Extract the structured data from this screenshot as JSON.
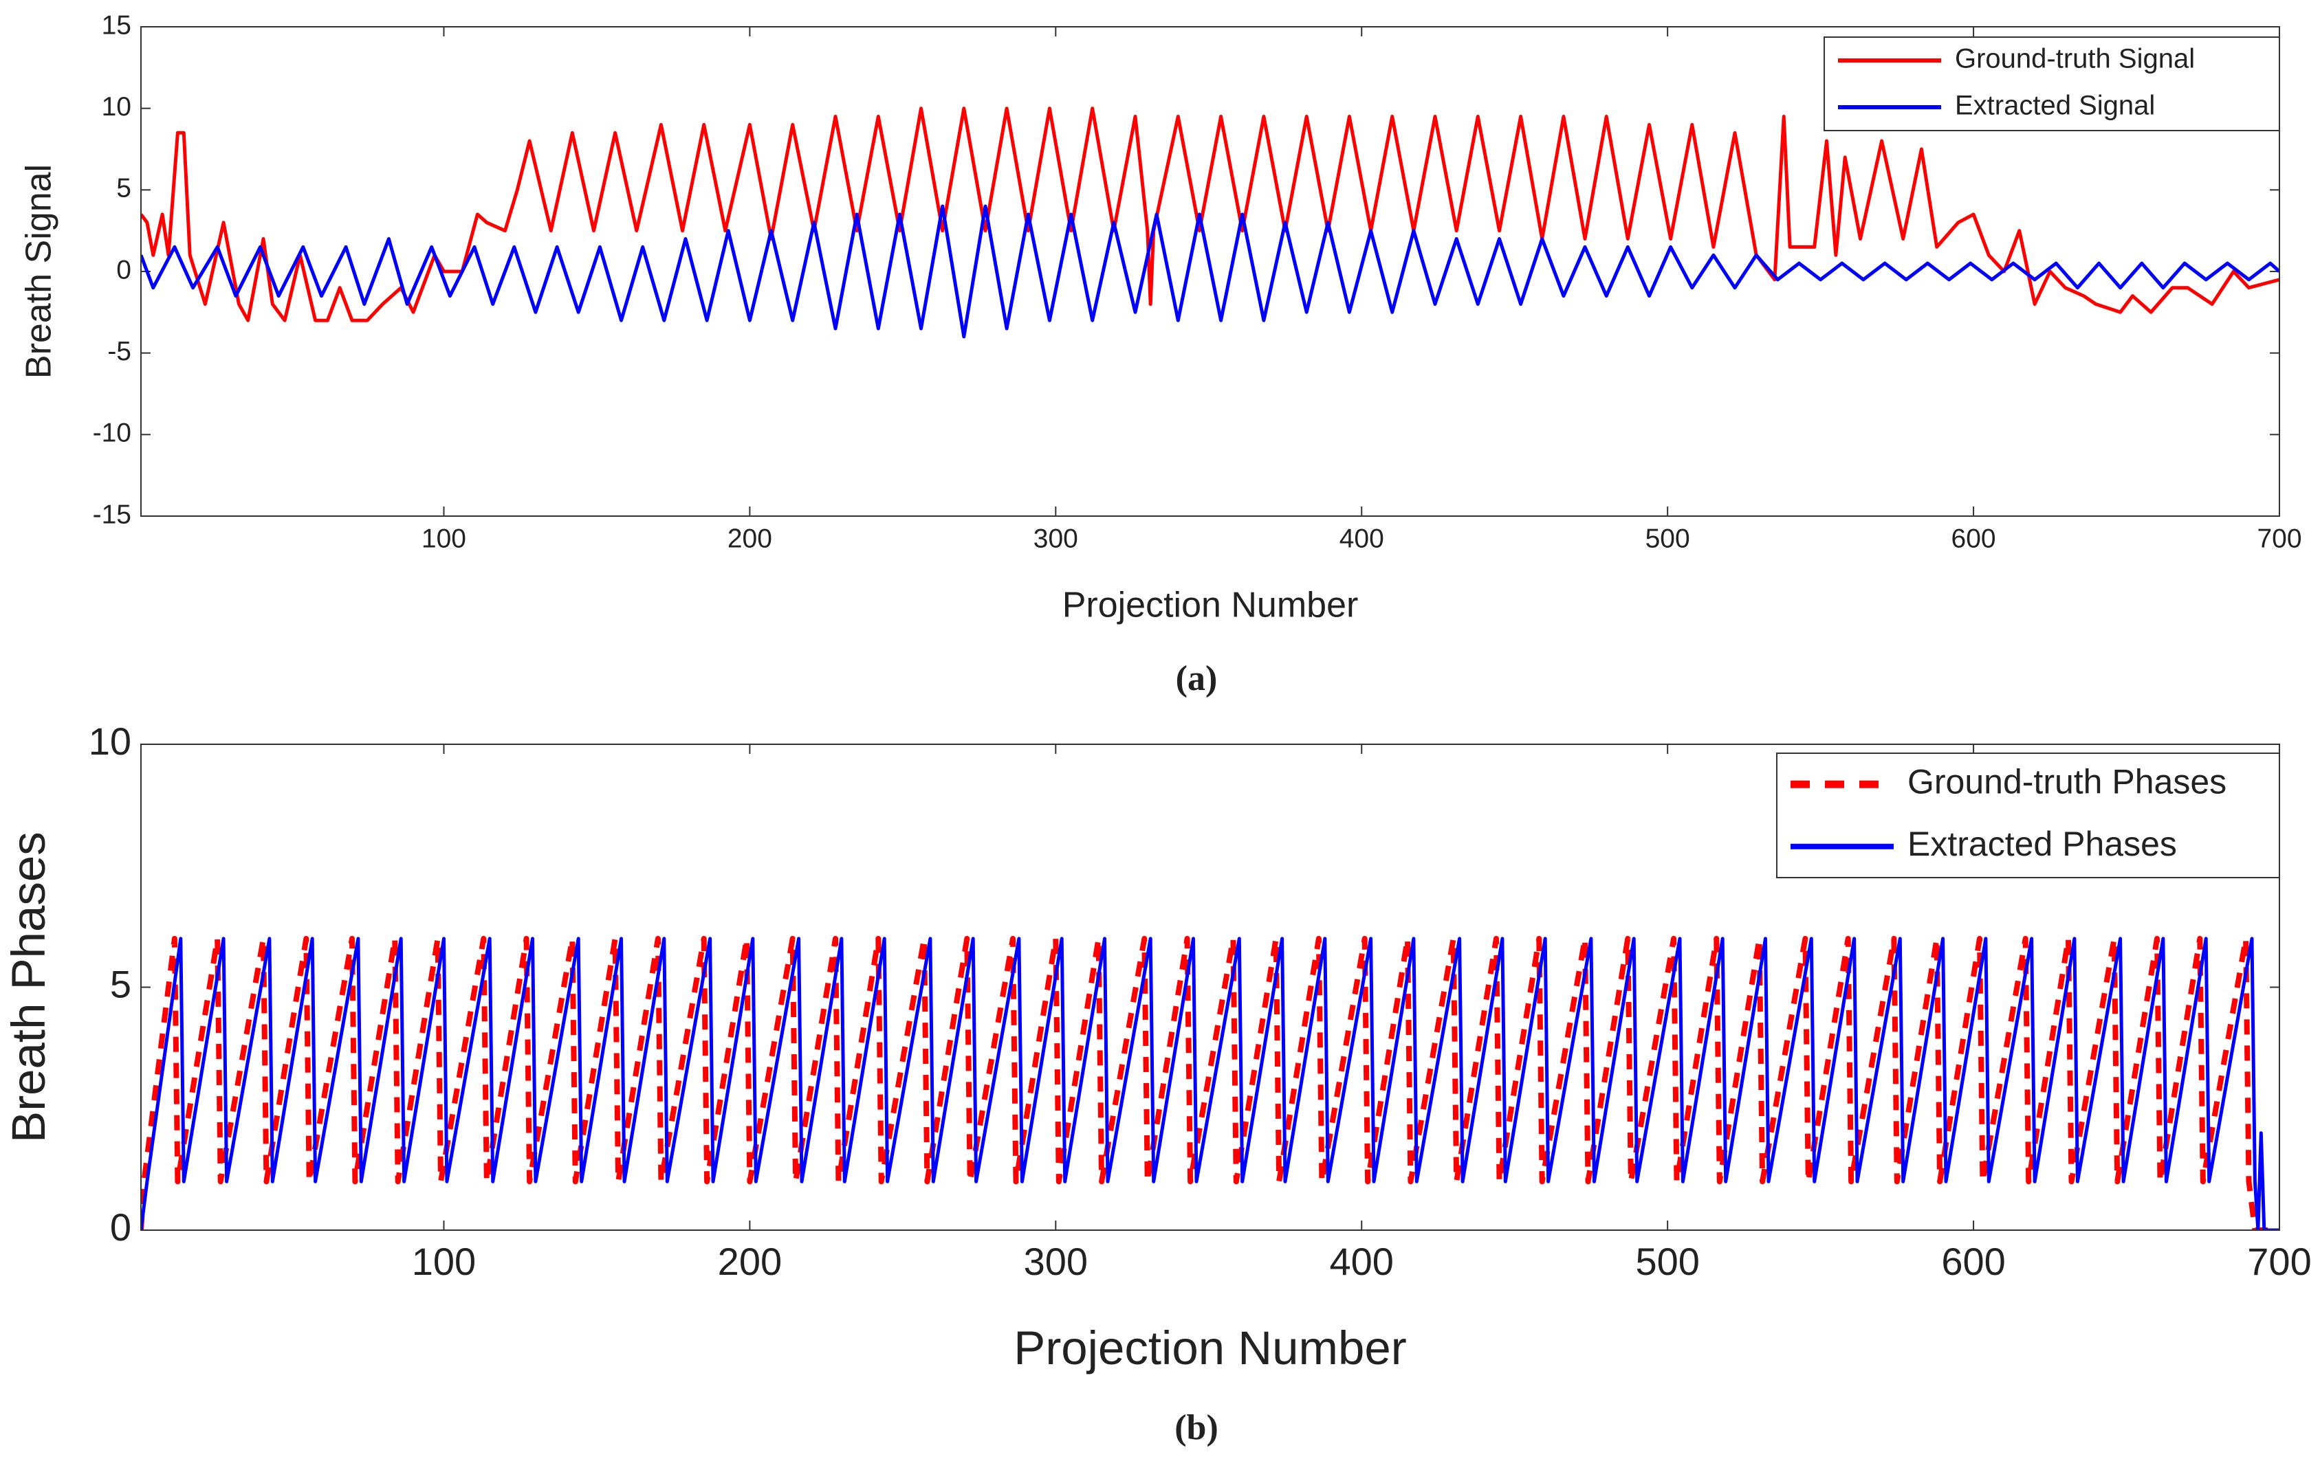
{
  "chart_data": [
    {
      "type": "line",
      "xlabel": "Projection Number",
      "ylabel": "Breath Signal",
      "caption": "(a)",
      "xlim": [
        1,
        700
      ],
      "ylim": [
        -15,
        15
      ],
      "xticks": [
        100,
        200,
        300,
        400,
        500,
        600,
        700
      ],
      "yticks": [
        -15,
        -10,
        -5,
        0,
        5,
        10,
        15
      ],
      "legend": "upper right",
      "series": [
        {
          "name": "Ground-truth Signal",
          "color": "#ff0000",
          "dash": false,
          "x": [
            1,
            3,
            5,
            8,
            10,
            13,
            15,
            17,
            22,
            28,
            33,
            36,
            41,
            44,
            48,
            53,
            58,
            62,
            66,
            70,
            75,
            80,
            86,
            90,
            97,
            100,
            106,
            111,
            114,
            120,
            124,
            128,
            135,
            142,
            149,
            156,
            163,
            171,
            178,
            185,
            192,
            200,
            207,
            214,
            221,
            228,
            235,
            242,
            249,
            256,
            263,
            270,
            277,
            284,
            291,
            298,
            305,
            312,
            319,
            326,
            330,
            331,
            332,
            340,
            347,
            354,
            361,
            368,
            375,
            382,
            389,
            396,
            403,
            410,
            417,
            424,
            431,
            438,
            445,
            452,
            459,
            466,
            473,
            480,
            487,
            494,
            501,
            508,
            515,
            522,
            529,
            535,
            538,
            540,
            548,
            552,
            555,
            558,
            563,
            570,
            577,
            583,
            588,
            595,
            600,
            605,
            610,
            615,
            620,
            625,
            630,
            636,
            640,
            648,
            652,
            658,
            665,
            670,
            678,
            685,
            690,
            700
          ],
          "values": [
            3.5,
            3,
            1,
            3.5,
            1,
            8.5,
            8.5,
            1,
            -2,
            3,
            -2,
            -3,
            2,
            -2,
            -3,
            1,
            -3,
            -3,
            -1,
            -3,
            -3,
            -2,
            -1,
            -2.5,
            1,
            0,
            0,
            3.5,
            3,
            2.5,
            5,
            8,
            2.5,
            8.5,
            2.5,
            8.5,
            2.5,
            9,
            2.5,
            9,
            2.5,
            9,
            2,
            9,
            2.5,
            9.5,
            2.5,
            9.5,
            2.5,
            10,
            2.5,
            10,
            2.5,
            10,
            2.5,
            10,
            2.5,
            10,
            2.5,
            9.5,
            2.5,
            -2,
            2.5,
            9.5,
            2.5,
            9.5,
            2.5,
            9.5,
            2.5,
            9.5,
            2.5,
            9.5,
            2.5,
            9.5,
            2.5,
            9.5,
            2.5,
            9.5,
            2.5,
            9.5,
            2,
            9.5,
            2,
            9.5,
            2,
            9,
            2,
            9,
            1.5,
            8.5,
            1,
            -0.5,
            9.5,
            1.5,
            1.5,
            8,
            1,
            7,
            2,
            8,
            2,
            7.5,
            1.5,
            3,
            3.5,
            1,
            0,
            2.5,
            -2,
            0,
            -1,
            -1.5,
            -2,
            -2.5,
            -1.5,
            -2.5,
            -1,
            -1,
            -2,
            0,
            -1,
            -0.5
          ]
        },
        {
          "name": "Extracted Signal",
          "color": "#0000ff",
          "dash": false,
          "x": [
            1,
            5,
            12,
            18,
            26,
            32,
            40,
            46,
            54,
            60,
            68,
            74,
            82,
            88,
            96,
            102,
            110,
            116,
            123,
            130,
            137,
            144,
            151,
            158,
            165,
            172,
            179,
            186,
            193,
            200,
            207,
            214,
            221,
            228,
            235,
            242,
            249,
            256,
            263,
            270,
            277,
            284,
            291,
            298,
            305,
            312,
            319,
            326,
            333,
            340,
            347,
            354,
            361,
            368,
            375,
            382,
            389,
            396,
            403,
            410,
            417,
            424,
            431,
            438,
            445,
            452,
            459,
            466,
            473,
            480,
            487,
            494,
            501,
            508,
            515,
            522,
            529,
            536,
            543,
            550,
            557,
            564,
            571,
            578,
            585,
            592,
            599,
            606,
            613,
            620,
            627,
            634,
            641,
            648,
            655,
            662,
            669,
            676,
            683,
            690,
            697,
            700
          ],
          "values": [
            1,
            -1,
            1.5,
            -1,
            1.5,
            -1.5,
            1.5,
            -1.5,
            1.5,
            -1.5,
            1.5,
            -2,
            2,
            -2,
            1.5,
            -1.5,
            1.5,
            -2,
            1.5,
            -2.5,
            1.5,
            -2.5,
            1.5,
            -3,
            1.5,
            -3,
            2,
            -3,
            2.5,
            -3,
            2.5,
            -3,
            3,
            -3.5,
            3.5,
            -3.5,
            3.5,
            -3.5,
            4,
            -4,
            4,
            -3.5,
            3.5,
            -3,
            3.5,
            -3,
            3,
            -2.5,
            3.5,
            -3,
            3.5,
            -3,
            3.5,
            -3,
            3,
            -2.5,
            3,
            -2.5,
            2.5,
            -2.5,
            2.5,
            -2,
            2,
            -2,
            2,
            -2,
            2,
            -1.5,
            1.5,
            -1.5,
            1.5,
            -1.5,
            1.5,
            -1,
            1,
            -1,
            1,
            -0.5,
            0.5,
            -0.5,
            0.5,
            -0.5,
            0.5,
            -0.5,
            0.5,
            -0.5,
            0.5,
            -0.5,
            0.5,
            -0.5,
            0.5,
            -1,
            0.5,
            -1,
            0.5,
            -1,
            0.5,
            -0.5,
            0.5,
            -0.5,
            0.5,
            0
          ]
        }
      ]
    },
    {
      "type": "line",
      "xlabel": "Projection Number",
      "ylabel": "Breath Phases",
      "caption": "(b)",
      "xlim": [
        1,
        700
      ],
      "ylim": [
        0,
        10
      ],
      "xticks": [
        100,
        200,
        300,
        400,
        500,
        600,
        700
      ],
      "yticks": [
        0,
        5,
        10
      ],
      "legend": "upper right",
      "series": [
        {
          "name": "Ground-truth Phases",
          "color": "#ff0000",
          "dash": true,
          "x": [
            1,
            2,
            12,
            13,
            26,
            27,
            41,
            42,
            55,
            56,
            70,
            71,
            84,
            85,
            98,
            99,
            113,
            114,
            127,
            128,
            142,
            143,
            156,
            157,
            170,
            171,
            185,
            186,
            199,
            200,
            214,
            215,
            228,
            229,
            242,
            243,
            257,
            258,
            271,
            272,
            286,
            287,
            300,
            301,
            314,
            315,
            329,
            330,
            343,
            344,
            358,
            359,
            372,
            373,
            386,
            387,
            401,
            402,
            415,
            416,
            430,
            431,
            444,
            445,
            458,
            459,
            473,
            474,
            487,
            488,
            502,
            503,
            516,
            517,
            530,
            531,
            545,
            546,
            559,
            560,
            574,
            575,
            588,
            589,
            602,
            603,
            617,
            618,
            631,
            632,
            646,
            647,
            660,
            661,
            674,
            675,
            689,
            690,
            692,
            700
          ],
          "values": [
            0,
            1,
            6,
            1,
            6,
            1,
            6,
            1,
            6,
            1,
            6,
            1,
            6,
            1,
            6,
            1,
            6,
            1,
            6,
            1,
            6,
            1,
            6,
            1,
            6,
            1,
            6,
            1,
            6,
            1,
            6,
            1,
            6,
            1,
            6,
            1,
            6,
            1,
            6,
            1,
            6,
            1,
            6,
            1,
            6,
            1,
            6,
            1,
            6,
            1,
            6,
            1,
            6,
            1,
            6,
            1,
            6,
            1,
            6,
            1,
            6,
            1,
            6,
            1,
            6,
            1,
            6,
            1,
            6,
            1,
            6,
            1,
            6,
            1,
            6,
            1,
            6,
            1,
            6,
            1,
            6,
            1,
            6,
            1,
            6,
            1,
            6,
            1,
            6,
            1,
            6,
            1,
            6,
            1,
            6,
            1,
            6,
            1,
            0,
            0
          ]
        },
        {
          "name": "Extracted Phases",
          "color": "#0000ff",
          "dash": false,
          "x": [
            1,
            3,
            14,
            15,
            28,
            29,
            43,
            44,
            57,
            58,
            72,
            73,
            86,
            87,
            100,
            101,
            115,
            116,
            129,
            130,
            144,
            145,
            158,
            159,
            172,
            173,
            187,
            188,
            201,
            202,
            216,
            217,
            230,
            231,
            244,
            245,
            259,
            260,
            273,
            274,
            288,
            289,
            302,
            303,
            316,
            317,
            331,
            332,
            345,
            346,
            360,
            361,
            374,
            375,
            388,
            389,
            403,
            404,
            417,
            418,
            432,
            433,
            446,
            447,
            460,
            461,
            475,
            476,
            489,
            490,
            504,
            505,
            518,
            519,
            532,
            533,
            547,
            548,
            561,
            562,
            576,
            577,
            590,
            591,
            604,
            605,
            619,
            620,
            633,
            634,
            648,
            649,
            662,
            663,
            676,
            677,
            691,
            692,
            693,
            694,
            695,
            700
          ],
          "values": [
            0,
            1,
            6,
            1,
            6,
            1,
            6,
            1,
            6,
            1,
            6,
            1,
            6,
            1,
            6,
            1,
            6,
            1,
            6,
            1,
            6,
            1,
            6,
            1,
            6,
            1,
            6,
            1,
            6,
            1,
            6,
            1,
            6,
            1,
            6,
            1,
            6,
            1,
            6,
            1,
            6,
            1,
            6,
            1,
            6,
            1,
            6,
            1,
            6,
            1,
            6,
            1,
            6,
            1,
            6,
            1,
            6,
            1,
            6,
            1,
            6,
            1,
            6,
            1,
            6,
            1,
            6,
            1,
            6,
            1,
            6,
            1,
            6,
            1,
            6,
            1,
            6,
            1,
            6,
            1,
            6,
            1,
            6,
            1,
            6,
            1,
            6,
            1,
            6,
            1,
            6,
            1,
            6,
            1,
            6,
            1,
            6,
            1,
            0,
            2,
            0,
            0
          ]
        }
      ]
    }
  ]
}
